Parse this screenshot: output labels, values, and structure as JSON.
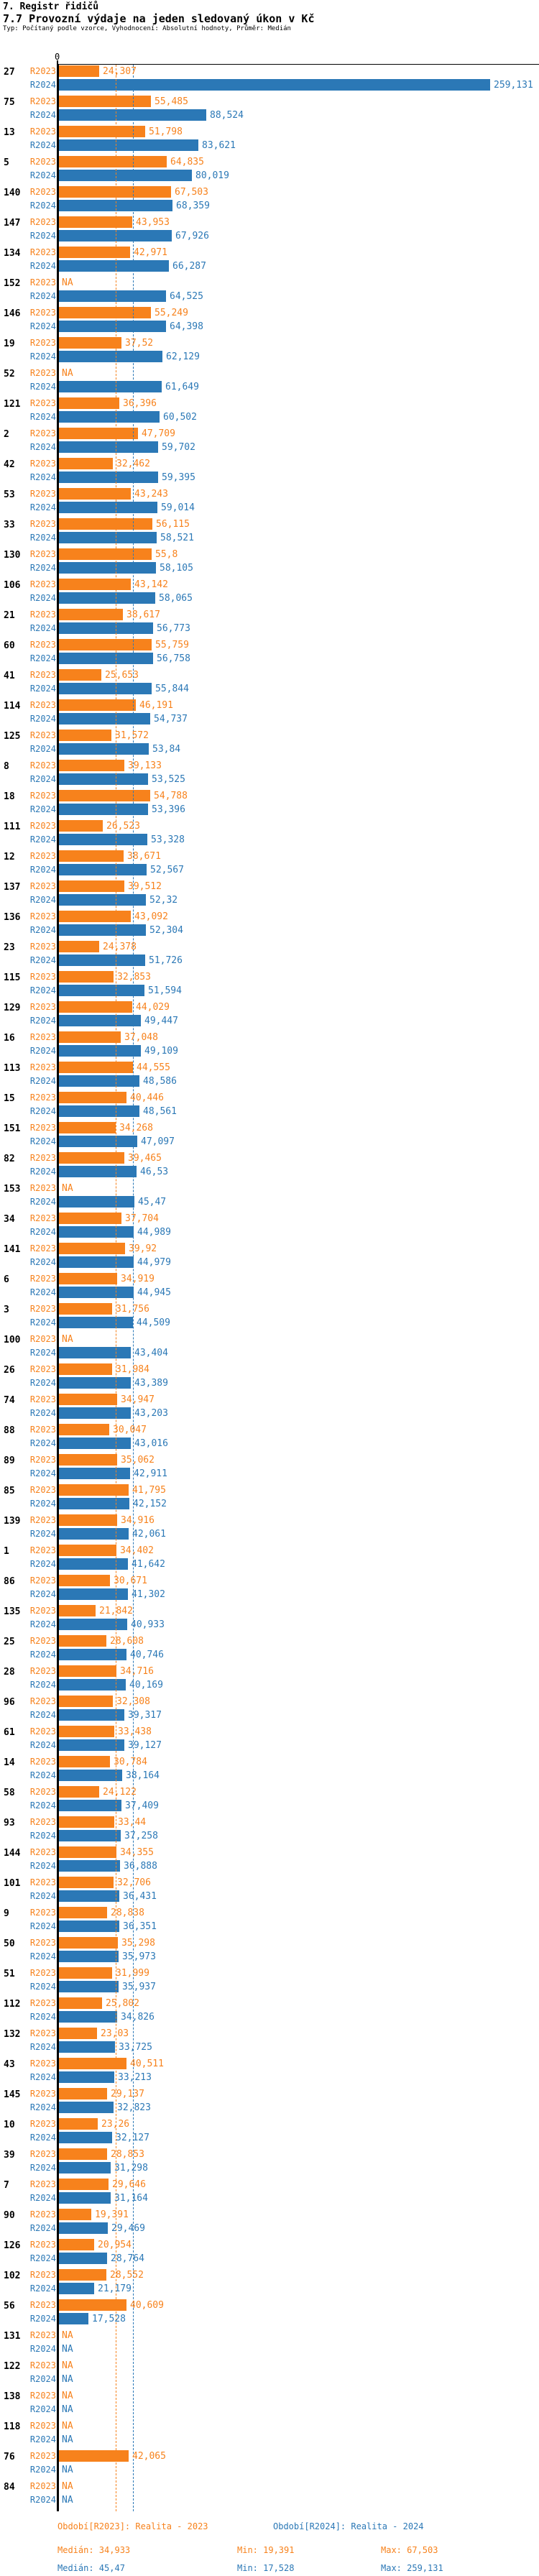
{
  "title": "7. Registr řidičů",
  "subtitle": "7.7 Provozní výdaje na jeden sledovaný úkon v Kč",
  "meta": "Typ: Počítaný podle vzorce, Vyhodnocení: Absolutní hodnoty, Průměr: Medián",
  "colors": {
    "r2023": "#F7821C",
    "r2024": "#2B78B6",
    "axis": "#000000"
  },
  "chart_data": {
    "type": "bar",
    "orientation": "horizontal",
    "unit": "Kč",
    "series": [
      "R2023",
      "R2024"
    ],
    "axis": {
      "zero_label": "0",
      "xlim": [
        0,
        289
      ]
    },
    "reference_lines": [
      {
        "name": "median-2023",
        "value": 34.933,
        "color": "#F7821C"
      },
      {
        "name": "median-2024",
        "value": 45.47,
        "color": "#2B78B6"
      }
    ],
    "rows": [
      [
        "27",
        "24,307",
        "259,131"
      ],
      [
        "75",
        "55,485",
        "88,524"
      ],
      [
        "13",
        "51,798",
        "83,621"
      ],
      [
        "5",
        "64,835",
        "80,019"
      ],
      [
        "140",
        "67,503",
        "68,359"
      ],
      [
        "147",
        "43,953",
        "67,926"
      ],
      [
        "134",
        "42,971",
        "66,287"
      ],
      [
        "152",
        "NA",
        "64,525"
      ],
      [
        "146",
        "55,249",
        "64,398"
      ],
      [
        "19",
        "37,52",
        "62,129"
      ],
      [
        "52",
        "NA",
        "61,649"
      ],
      [
        "121",
        "36,396",
        "60,502"
      ],
      [
        "2",
        "47,709",
        "59,702"
      ],
      [
        "42",
        "32,462",
        "59,395"
      ],
      [
        "53",
        "43,243",
        "59,014"
      ],
      [
        "33",
        "56,115",
        "58,521"
      ],
      [
        "130",
        "55,8",
        "58,105"
      ],
      [
        "106",
        "43,142",
        "58,065"
      ],
      [
        "21",
        "38,617",
        "56,773"
      ],
      [
        "60",
        "55,759",
        "56,758"
      ],
      [
        "41",
        "25,653",
        "55,844"
      ],
      [
        "114",
        "46,191",
        "54,737"
      ],
      [
        "125",
        "31,572",
        "53,84"
      ],
      [
        "8",
        "39,133",
        "53,525"
      ],
      [
        "18",
        "54,788",
        "53,396"
      ],
      [
        "111",
        "26,523",
        "53,328"
      ],
      [
        "12",
        "38,671",
        "52,567"
      ],
      [
        "137",
        "39,512",
        "52,32"
      ],
      [
        "136",
        "43,092",
        "52,304"
      ],
      [
        "23",
        "24,378",
        "51,726"
      ],
      [
        "115",
        "32,853",
        "51,594"
      ],
      [
        "129",
        "44,029",
        "49,447"
      ],
      [
        "16",
        "37,048",
        "49,109"
      ],
      [
        "113",
        "44,555",
        "48,586"
      ],
      [
        "15",
        "40,446",
        "48,561"
      ],
      [
        "151",
        "34,268",
        "47,097"
      ],
      [
        "82",
        "39,465",
        "46,53"
      ],
      [
        "153",
        "NA",
        "45,47"
      ],
      [
        "34",
        "37,704",
        "44,989"
      ],
      [
        "141",
        "39,92",
        "44,979"
      ],
      [
        "6",
        "34,919",
        "44,945"
      ],
      [
        "3",
        "31,756",
        "44,509"
      ],
      [
        "100",
        "NA",
        "43,404"
      ],
      [
        "26",
        "31,984",
        "43,389"
      ],
      [
        "74",
        "34,947",
        "43,203"
      ],
      [
        "88",
        "30,047",
        "43,016"
      ],
      [
        "89",
        "35,062",
        "42,911"
      ],
      [
        "85",
        "41,795",
        "42,152"
      ],
      [
        "139",
        "34,916",
        "42,061"
      ],
      [
        "1",
        "34,402",
        "41,642"
      ],
      [
        "86",
        "30,671",
        "41,302"
      ],
      [
        "135",
        "21,842",
        "40,933"
      ],
      [
        "25",
        "28,608",
        "40,746"
      ],
      [
        "28",
        "34,716",
        "40,169"
      ],
      [
        "96",
        "32,308",
        "39,317"
      ],
      [
        "61",
        "33,438",
        "39,127"
      ],
      [
        "14",
        "30,784",
        "38,164"
      ],
      [
        "58",
        "24,122",
        "37,409"
      ],
      [
        "93",
        "33,44",
        "37,258"
      ],
      [
        "144",
        "34,355",
        "36,888"
      ],
      [
        "101",
        "32,706",
        "36,431"
      ],
      [
        "9",
        "28,838",
        "36,351"
      ],
      [
        "50",
        "35,298",
        "35,973"
      ],
      [
        "51",
        "31,999",
        "35,937"
      ],
      [
        "112",
        "25,802",
        "34,826"
      ],
      [
        "132",
        "23,03",
        "33,725"
      ],
      [
        "43",
        "40,511",
        "33,213"
      ],
      [
        "145",
        "29,137",
        "32,823"
      ],
      [
        "10",
        "23,26",
        "32,127"
      ],
      [
        "39",
        "28,853",
        "31,298"
      ],
      [
        "7",
        "29,646",
        "31,164"
      ],
      [
        "90",
        "19,391",
        "29,469"
      ],
      [
        "126",
        "20,954",
        "28,764"
      ],
      [
        "102",
        "28,552",
        "21,179"
      ],
      [
        "56",
        "40,609",
        "17,528"
      ],
      [
        "131",
        "NA",
        "NA"
      ],
      [
        "122",
        "NA",
        "NA"
      ],
      [
        "138",
        "NA",
        "NA"
      ],
      [
        "118",
        "NA",
        "NA"
      ],
      [
        "76",
        "42,065",
        "NA"
      ],
      [
        "84",
        "NA",
        "NA"
      ]
    ],
    "legend": {
      "r2023": {
        "period": "Období[R2023]: Realita - 2023",
        "median": "Medián: 34,933",
        "min": "Min: 19,391",
        "max": "Max: 67,503"
      },
      "r2024": {
        "period": "Období[R2024]: Realita - 2024",
        "median": "Medián: 45,47",
        "min": "Min: 17,528",
        "max": "Max: 259,131"
      }
    }
  }
}
